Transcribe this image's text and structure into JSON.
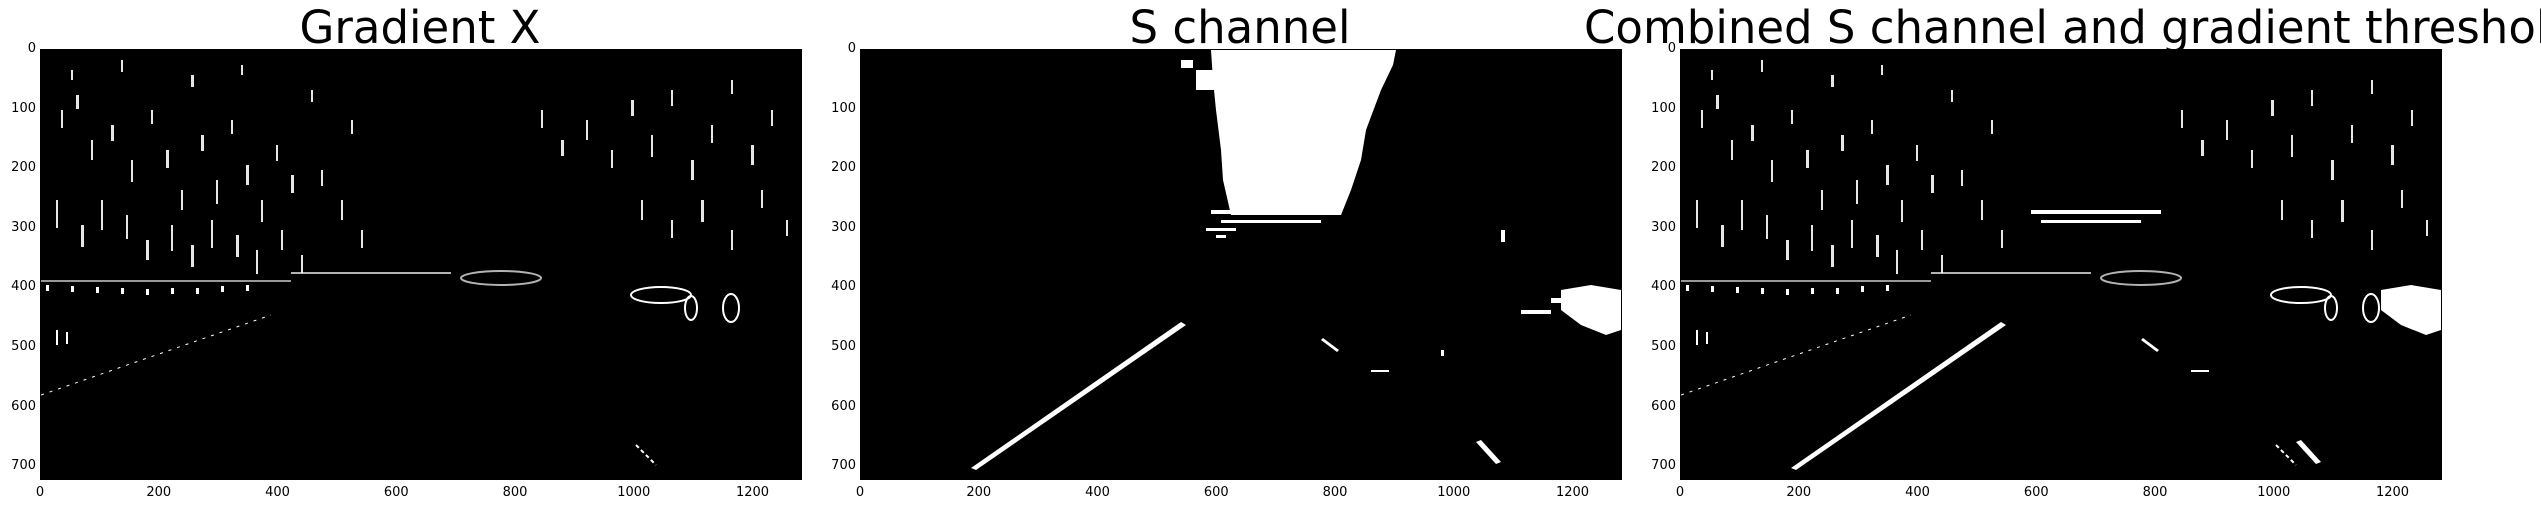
{
  "panels": [
    {
      "id": "gradient-x",
      "title": "Gradient X"
    },
    {
      "id": "s-channel",
      "title": "S channel"
    },
    {
      "id": "combined",
      "title": "Combined S channel and gradient thresholds"
    }
  ],
  "axes": {
    "y_ticks": [
      "0",
      "100",
      "200",
      "300",
      "400",
      "500",
      "600",
      "700"
    ],
    "x_ticks": [
      "0",
      "200",
      "400",
      "600",
      "800",
      "1000",
      "1200"
    ],
    "y_values": [
      0,
      100,
      200,
      300,
      400,
      500,
      600,
      700
    ],
    "x_values": [
      0,
      200,
      400,
      600,
      800,
      1000,
      1200
    ],
    "xlim": [
      0,
      1280
    ],
    "ylim": [
      720,
      0
    ]
  },
  "colors": {
    "background": "#000000",
    "foreground": "#ffffff"
  }
}
